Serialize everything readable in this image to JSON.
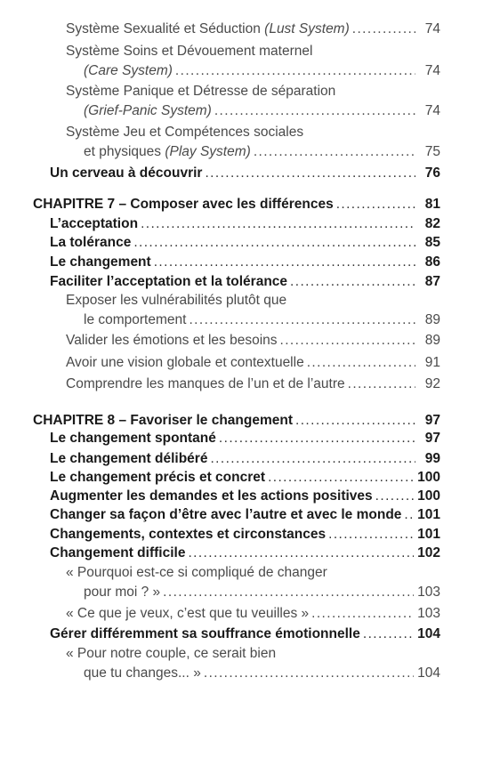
{
  "entries": [
    {
      "level": 3,
      "lines": [
        "Système Sexualité et Séduction (Lust System)"
      ],
      "italic": "(Lust System)",
      "page": "74"
    },
    {
      "level": 3,
      "lines": [
        "Système Soins et Dévouement maternel",
        "(Care System)"
      ],
      "italic": "(Care System)",
      "page": "74"
    },
    {
      "level": 3,
      "lines": [
        "Système Panique et Détresse de séparation",
        "(Grief-Panic System)"
      ],
      "italic": "(Grief-Panic System)",
      "page": "74"
    },
    {
      "level": 3,
      "lines": [
        "Système Jeu et Compétences sociales",
        "et physiques (Play System)"
      ],
      "italic": "(Play System)",
      "page": "75"
    },
    {
      "level": 2,
      "lines": [
        "Un cerveau à découvrir"
      ],
      "page": "76"
    },
    {
      "level": 1,
      "lines": [
        "CHAPITRE 7 – Composer avec les différences"
      ],
      "page": "81"
    },
    {
      "level": 2,
      "lines": [
        "L’acceptation"
      ],
      "page": "82"
    },
    {
      "level": 2,
      "lines": [
        "La tolérance"
      ],
      "page": "85"
    },
    {
      "level": 2,
      "lines": [
        "Le changement"
      ],
      "page": "86"
    },
    {
      "level": 2,
      "lines": [
        "Faciliter l’acceptation et la tolérance"
      ],
      "page": "87"
    },
    {
      "level": 3,
      "lines": [
        "Exposer les vulnérabilités plutôt que",
        "le comportement"
      ],
      "page": "89"
    },
    {
      "level": 3,
      "lines": [
        "Valider les émotions et les besoins"
      ],
      "page": "89"
    },
    {
      "level": 3,
      "lines": [
        "Avoir une vision globale et contextuelle"
      ],
      "page": "91"
    },
    {
      "level": 3,
      "lines": [
        "Comprendre les manques de l’un et de l’autre"
      ],
      "page": "92"
    },
    {
      "level": 1,
      "lines": [
        "CHAPITRE 8 – Favoriser le changement"
      ],
      "page": "97"
    },
    {
      "level": 2,
      "lines": [
        "Le changement spontané"
      ],
      "page": "97"
    },
    {
      "level": 2,
      "lines": [
        "Le changement délibéré"
      ],
      "page": "99"
    },
    {
      "level": 2,
      "lines": [
        "Le changement précis et concret"
      ],
      "page": "100"
    },
    {
      "level": 2,
      "lines": [
        "Augmenter les demandes et les actions positives"
      ],
      "page": "100"
    },
    {
      "level": 2,
      "lines": [
        "Changer sa façon d’être avec l’autre et avec le monde"
      ],
      "page": "101"
    },
    {
      "level": 2,
      "lines": [
        "Changements, contextes et circonstances"
      ],
      "page": "101"
    },
    {
      "level": 2,
      "lines": [
        "Changement difficile"
      ],
      "page": "102"
    },
    {
      "level": 3,
      "lines": [
        "« Pourquoi est-ce si compliqué de changer",
        "pour moi ? »"
      ],
      "page": "103"
    },
    {
      "level": 3,
      "lines": [
        "« Ce que je veux, c’est que tu veuilles »"
      ],
      "page": "103"
    },
    {
      "level": 2,
      "lines": [
        "Gérer différemment sa souffrance émotionnelle"
      ],
      "page": "104"
    },
    {
      "level": 3,
      "lines": [
        "« Pour notre couple, ce serait bien",
        "que tu changes... »"
      ],
      "page": "104"
    }
  ]
}
